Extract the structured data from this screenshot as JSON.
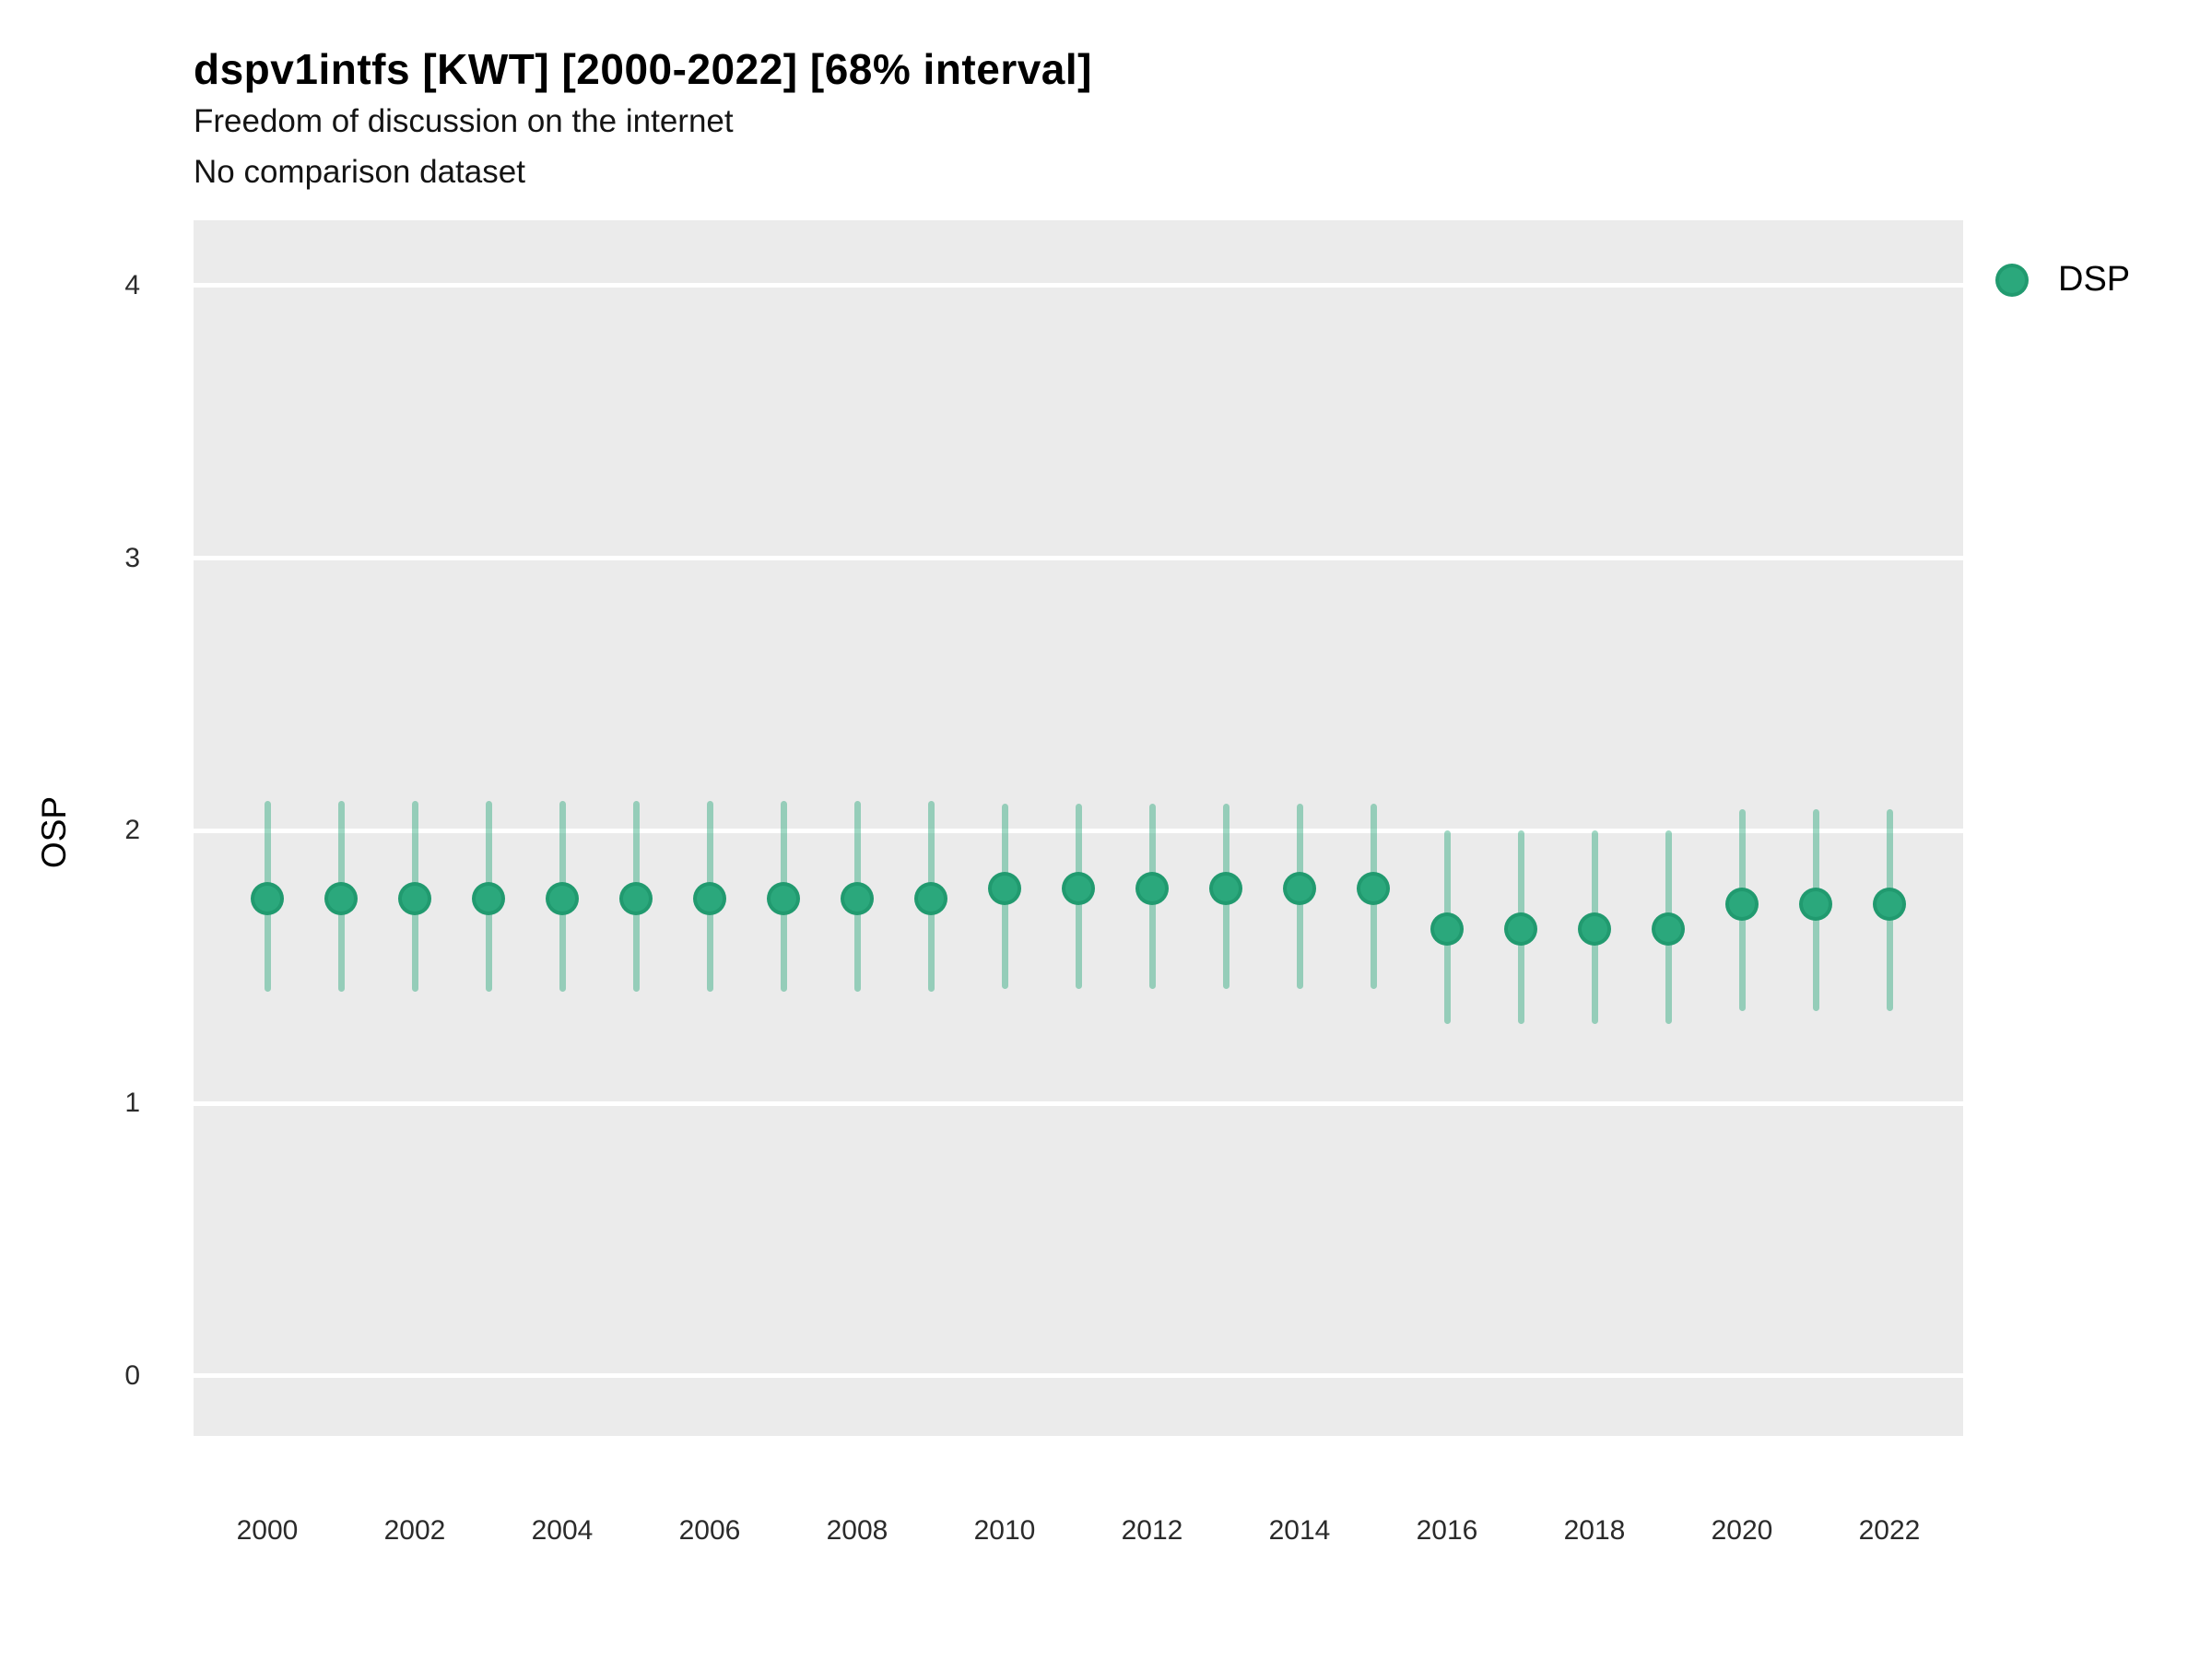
{
  "header": {
    "title": "dspv1intfs [KWT] [2000-2022] [68% interval]",
    "subtitle1": "Freedom of discussion on the internet",
    "subtitle2": "No comparison dataset"
  },
  "legend": {
    "position": "right",
    "items": [
      {
        "label": "DSP",
        "marker": "circle-icon",
        "color": "#2ba87c"
      }
    ]
  },
  "colors": {
    "point_fill": "#2ba87c",
    "point_ring": "rgba(26,142,101,0.55)",
    "interval_bar": "rgba(44,168,124,0.45)",
    "panel_background": "#ebebeb",
    "gridline": "#ffffff",
    "tick_text": "#2b2b2b"
  },
  "chart_data": {
    "type": "pointrange",
    "title": "dspv1intfs [KWT] [2000-2022] [68% interval]",
    "subtitle": [
      "Freedom of discussion on the internet",
      "No comparison dataset"
    ],
    "xlabel": "",
    "ylabel": "OSP",
    "interval_label": "68% interval",
    "grid": true,
    "legend_position": "right",
    "ylim": [
      -0.22,
      4.24
    ],
    "yticks": [
      0,
      1,
      2,
      3,
      4
    ],
    "xticks": [
      2000,
      2002,
      2004,
      2006,
      2008,
      2010,
      2012,
      2014,
      2016,
      2018,
      2020,
      2022
    ],
    "series": [
      {
        "name": "DSP",
        "color": "#2ba87c",
        "x": [
          2000,
          2001,
          2002,
          2003,
          2004,
          2005,
          2006,
          2007,
          2008,
          2009,
          2010,
          2011,
          2012,
          2013,
          2014,
          2015,
          2016,
          2017,
          2018,
          2019,
          2020,
          2021,
          2022
        ],
        "y": [
          1.75,
          1.75,
          1.75,
          1.75,
          1.75,
          1.75,
          1.75,
          1.75,
          1.75,
          1.75,
          1.79,
          1.79,
          1.79,
          1.79,
          1.79,
          1.79,
          1.64,
          1.64,
          1.64,
          1.64,
          1.73,
          1.73,
          1.73
        ],
        "y_low": [
          1.42,
          1.42,
          1.42,
          1.42,
          1.42,
          1.42,
          1.42,
          1.42,
          1.42,
          1.42,
          1.43,
          1.43,
          1.43,
          1.43,
          1.43,
          1.43,
          1.3,
          1.3,
          1.3,
          1.3,
          1.35,
          1.35,
          1.35
        ],
        "y_high": [
          2.1,
          2.1,
          2.1,
          2.1,
          2.1,
          2.1,
          2.1,
          2.1,
          2.1,
          2.1,
          2.09,
          2.09,
          2.09,
          2.09,
          2.09,
          2.09,
          1.99,
          1.99,
          1.99,
          1.99,
          2.07,
          2.07,
          2.07
        ]
      }
    ]
  }
}
